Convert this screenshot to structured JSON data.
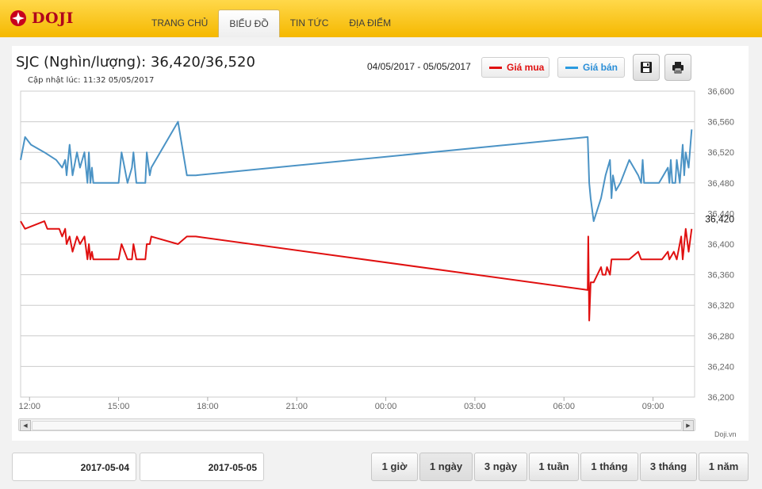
{
  "brand": {
    "name": "DOJI"
  },
  "nav": [
    {
      "label": "TRANG CHỦ",
      "active": false
    },
    {
      "label": "BIỂU ĐỒ",
      "active": true
    },
    {
      "label": "TIN TỨC",
      "active": false
    },
    {
      "label": "ĐỊA ĐIỂM",
      "active": false
    }
  ],
  "header": {
    "title": "SJC (Nghìn/lượng): 36,420/36,520",
    "updated": "Cập nhật lúc: 11:32 05/05/2017",
    "date_range": "04/05/2017 - 05/05/2017"
  },
  "legend": {
    "buy": "Giá mua",
    "sell": "Giá bán"
  },
  "colors": {
    "buy": "#e01010",
    "sell": "#4b93c5",
    "grid": "#cfcfcf",
    "accent": "#f5b800"
  },
  "icons": {
    "save": "floppy-disk-icon",
    "print": "printer-icon"
  },
  "credit": "Doji.vn",
  "dates": {
    "from": "2017-05-04",
    "to": "2017-05-05"
  },
  "ranges": [
    {
      "label": "1 giờ",
      "active": false
    },
    {
      "label": "1 ngày",
      "active": true
    },
    {
      "label": "3 ngày",
      "active": false
    },
    {
      "label": "1 tuần",
      "active": false
    },
    {
      "label": "1 tháng",
      "active": false
    },
    {
      "label": "3 tháng",
      "active": false
    },
    {
      "label": "1 năm",
      "active": false
    }
  ],
  "chart_data": {
    "type": "line",
    "ylim": [
      36200,
      36600
    ],
    "yticks": [
      36200,
      36240,
      36280,
      36320,
      36360,
      36400,
      36440,
      36480,
      36520,
      36560,
      36600
    ],
    "ytick_labels": [
      "36,200",
      "36,240",
      "36,280",
      "36,320",
      "36,360",
      "36,400",
      "36,440",
      "36,480",
      "36,520",
      "36,560",
      "36,600"
    ],
    "xlim": [
      11.7,
      34.4
    ],
    "xticks": [
      12,
      15,
      18,
      21,
      24,
      27,
      30,
      33
    ],
    "xtick_labels": [
      "12:00",
      "15:00",
      "18:00",
      "21:00",
      "00:00",
      "03:00",
      "06:00",
      "09:00"
    ],
    "grid": true,
    "last_label": {
      "value": 36420,
      "text": "36,420"
    },
    "series": [
      {
        "name": "Giá bán",
        "color": "#4b93c5",
        "points": [
          [
            11.7,
            36510
          ],
          [
            11.85,
            36540
          ],
          [
            12.05,
            36530
          ],
          [
            12.5,
            36520
          ],
          [
            12.9,
            36510
          ],
          [
            13.1,
            36500
          ],
          [
            13.2,
            36510
          ],
          [
            13.25,
            36490
          ],
          [
            13.35,
            36530
          ],
          [
            13.45,
            36490
          ],
          [
            13.6,
            36520
          ],
          [
            13.7,
            36500
          ],
          [
            13.85,
            36520
          ],
          [
            13.95,
            36480
          ],
          [
            14.0,
            36520
          ],
          [
            14.05,
            36480
          ],
          [
            14.1,
            36500
          ],
          [
            14.15,
            36480
          ],
          [
            14.3,
            36480
          ],
          [
            15.0,
            36480
          ],
          [
            15.1,
            36520
          ],
          [
            15.2,
            36500
          ],
          [
            15.3,
            36480
          ],
          [
            15.45,
            36500
          ],
          [
            15.5,
            36520
          ],
          [
            15.6,
            36480
          ],
          [
            15.75,
            36480
          ],
          [
            15.9,
            36480
          ],
          [
            15.95,
            36520
          ],
          [
            16.05,
            36490
          ],
          [
            16.1,
            36500
          ],
          [
            17.0,
            36560
          ],
          [
            17.3,
            36490
          ],
          [
            17.6,
            36490
          ],
          [
            30.8,
            36540
          ],
          [
            30.85,
            36480
          ],
          [
            30.9,
            36460
          ],
          [
            31.0,
            36430
          ],
          [
            31.25,
            36460
          ],
          [
            31.4,
            36490
          ],
          [
            31.55,
            36510
          ],
          [
            31.6,
            36460
          ],
          [
            31.65,
            36490
          ],
          [
            31.75,
            36470
          ],
          [
            31.9,
            36480
          ],
          [
            32.2,
            36510
          ],
          [
            32.5,
            36490
          ],
          [
            32.6,
            36480
          ],
          [
            32.65,
            36510
          ],
          [
            32.7,
            36480
          ],
          [
            33.0,
            36480
          ],
          [
            33.2,
            36480
          ],
          [
            33.35,
            36490
          ],
          [
            33.5,
            36500
          ],
          [
            33.55,
            36480
          ],
          [
            33.6,
            36510
          ],
          [
            33.65,
            36480
          ],
          [
            33.75,
            36480
          ],
          [
            33.8,
            36510
          ],
          [
            33.9,
            36480
          ],
          [
            34.0,
            36530
          ],
          [
            34.05,
            36490
          ],
          [
            34.1,
            36520
          ],
          [
            34.2,
            36500
          ],
          [
            34.3,
            36550
          ]
        ]
      },
      {
        "name": "Giá mua",
        "color": "#e01010",
        "points": [
          [
            11.7,
            36430
          ],
          [
            11.85,
            36420
          ],
          [
            12.5,
            36430
          ],
          [
            12.6,
            36420
          ],
          [
            13.0,
            36420
          ],
          [
            13.1,
            36410
          ],
          [
            13.2,
            36420
          ],
          [
            13.25,
            36400
          ],
          [
            13.35,
            36410
          ],
          [
            13.45,
            36390
          ],
          [
            13.6,
            36410
          ],
          [
            13.7,
            36400
          ],
          [
            13.85,
            36410
          ],
          [
            13.95,
            36380
          ],
          [
            14.0,
            36400
          ],
          [
            14.05,
            36380
          ],
          [
            14.1,
            36390
          ],
          [
            14.15,
            36380
          ],
          [
            14.3,
            36380
          ],
          [
            15.0,
            36380
          ],
          [
            15.1,
            36400
          ],
          [
            15.2,
            36390
          ],
          [
            15.3,
            36380
          ],
          [
            15.45,
            36380
          ],
          [
            15.5,
            36400
          ],
          [
            15.6,
            36380
          ],
          [
            15.75,
            36380
          ],
          [
            15.9,
            36380
          ],
          [
            15.95,
            36400
          ],
          [
            16.05,
            36400
          ],
          [
            16.1,
            36410
          ],
          [
            17.0,
            36400
          ],
          [
            17.3,
            36410
          ],
          [
            17.6,
            36410
          ],
          [
            30.8,
            36340
          ],
          [
            30.82,
            36410
          ],
          [
            30.85,
            36300
          ],
          [
            30.9,
            36350
          ],
          [
            31.0,
            36350
          ],
          [
            31.25,
            36370
          ],
          [
            31.3,
            36360
          ],
          [
            31.4,
            36360
          ],
          [
            31.45,
            36370
          ],
          [
            31.55,
            36360
          ],
          [
            31.6,
            36380
          ],
          [
            32.2,
            36380
          ],
          [
            32.5,
            36390
          ],
          [
            32.6,
            36380
          ],
          [
            33.0,
            36380
          ],
          [
            33.3,
            36380
          ],
          [
            33.5,
            36390
          ],
          [
            33.55,
            36380
          ],
          [
            33.7,
            36390
          ],
          [
            33.8,
            36380
          ],
          [
            33.95,
            36410
          ],
          [
            34.0,
            36380
          ],
          [
            34.1,
            36420
          ],
          [
            34.2,
            36390
          ],
          [
            34.3,
            36420
          ]
        ]
      }
    ]
  }
}
